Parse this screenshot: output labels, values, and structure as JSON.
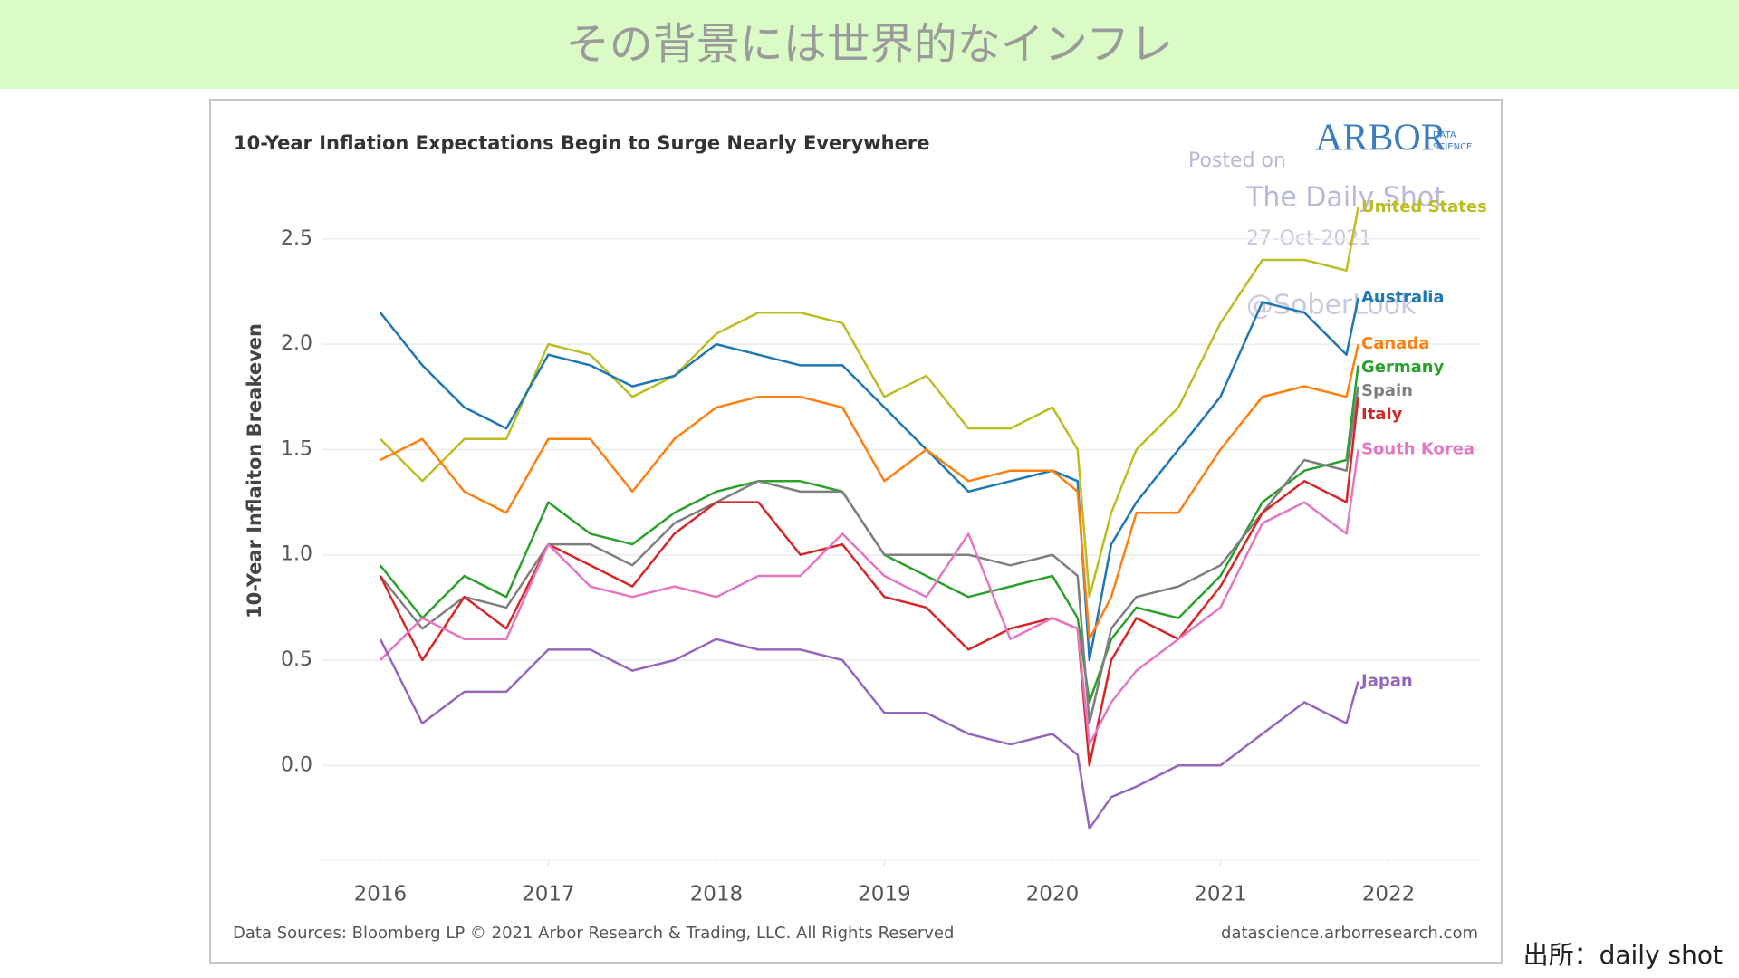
{
  "header": {
    "title": "その背景には世界的なインフレ"
  },
  "chart_data": {
    "type": "line",
    "title": "10-Year Inflation Expectations Begin to Surge Nearly Everywhere",
    "y_label": "10-Year Inflaiton Breakeven",
    "x": [
      2016,
      2016.25,
      2016.5,
      2016.75,
      2017,
      2017.25,
      2017.5,
      2017.75,
      2018,
      2018.25,
      2018.5,
      2018.75,
      2019,
      2019.25,
      2019.5,
      2019.75,
      2020,
      2020.15,
      2020.22,
      2020.35,
      2020.5,
      2020.75,
      2021,
      2021.25,
      2021.5,
      2021.75,
      2021.82
    ],
    "xlim": [
      2015.65,
      2022.55
    ],
    "xticks": [
      2016,
      2017,
      2018,
      2019,
      2020,
      2021,
      2022
    ],
    "ylim": [
      -0.45,
      2.8
    ],
    "yticks": [
      {
        "value": 0,
        "label": "0.0"
      },
      {
        "value": 0.5,
        "label": "0.5"
      },
      {
        "value": 1,
        "label": "1.0"
      },
      {
        "value": 1.5,
        "label": "1.5"
      },
      {
        "value": 2,
        "label": "2.0"
      },
      {
        "value": 2.5,
        "label": "2.5"
      }
    ],
    "grid": true,
    "series": [
      {
        "name": "United States",
        "color": "#bcbd22",
        "values": [
          1.55,
          1.35,
          1.55,
          1.55,
          2.0,
          1.95,
          1.75,
          1.85,
          2.05,
          2.15,
          2.15,
          2.1,
          1.75,
          1.85,
          1.6,
          1.6,
          1.7,
          1.5,
          0.8,
          1.2,
          1.5,
          1.7,
          2.1,
          2.4,
          2.4,
          2.35,
          2.65
        ]
      },
      {
        "name": "Australia",
        "color": "#1f77b4",
        "values": [
          2.15,
          1.9,
          1.7,
          1.6,
          1.95,
          1.9,
          1.8,
          1.85,
          2.0,
          1.95,
          1.9,
          1.9,
          1.7,
          1.5,
          1.3,
          1.35,
          1.4,
          1.35,
          0.5,
          1.05,
          1.25,
          1.5,
          1.75,
          2.2,
          2.15,
          1.95,
          2.22
        ]
      },
      {
        "name": "Canada",
        "color": "#ff7f0e",
        "values": [
          1.45,
          1.55,
          1.3,
          1.2,
          1.55,
          1.55,
          1.3,
          1.55,
          1.7,
          1.75,
          1.75,
          1.7,
          1.35,
          1.5,
          1.35,
          1.4,
          1.4,
          1.3,
          0.6,
          0.8,
          1.2,
          1.2,
          1.5,
          1.75,
          1.8,
          1.75,
          2.0
        ]
      },
      {
        "name": "Germany",
        "color": "#2ca02c",
        "values": [
          0.95,
          0.7,
          0.9,
          0.8,
          1.25,
          1.1,
          1.05,
          1.2,
          1.3,
          1.35,
          1.35,
          1.3,
          1.0,
          0.9,
          0.8,
          0.85,
          0.9,
          0.7,
          0.3,
          0.6,
          0.75,
          0.7,
          0.9,
          1.25,
          1.4,
          1.45,
          1.9
        ]
      },
      {
        "name": "Spain",
        "color": "#7f7f7f",
        "values": [
          0.9,
          0.65,
          0.8,
          0.75,
          1.05,
          1.05,
          0.95,
          1.15,
          1.25,
          1.35,
          1.3,
          1.3,
          1.0,
          1.0,
          1.0,
          0.95,
          1.0,
          0.9,
          0.2,
          0.65,
          0.8,
          0.85,
          0.95,
          1.2,
          1.45,
          1.4,
          1.8
        ]
      },
      {
        "name": "Italy",
        "color": "#d62728",
        "values": [
          0.9,
          0.5,
          0.8,
          0.65,
          1.05,
          0.95,
          0.85,
          1.1,
          1.25,
          1.25,
          1.0,
          1.05,
          0.8,
          0.75,
          0.55,
          0.65,
          0.7,
          0.65,
          0.0,
          0.5,
          0.7,
          0.6,
          0.85,
          1.2,
          1.35,
          1.25,
          1.75
        ]
      },
      {
        "name": "South Korea",
        "color": "#e377c2",
        "values": [
          0.5,
          0.7,
          0.6,
          0.6,
          1.05,
          0.85,
          0.8,
          0.85,
          0.8,
          0.9,
          0.9,
          1.1,
          0.9,
          0.8,
          1.1,
          0.6,
          0.7,
          0.65,
          0.1,
          0.3,
          0.45,
          0.6,
          0.75,
          1.15,
          1.25,
          1.1,
          1.5
        ]
      },
      {
        "name": "Japan",
        "color": "#9467bd",
        "values": [
          0.6,
          0.2,
          0.35,
          0.35,
          0.55,
          0.55,
          0.45,
          0.5,
          0.6,
          0.55,
          0.55,
          0.5,
          0.25,
          0.25,
          0.15,
          0.1,
          0.15,
          0.05,
          -0.3,
          -0.15,
          -0.1,
          0.0,
          0.0,
          0.15,
          0.3,
          0.2,
          0.4
        ]
      }
    ],
    "watermark": [
      "Posted on",
      "The Daily Shot",
      "27-Oct-2021",
      "@SoberLook"
    ],
    "logo": {
      "name": "ARBOR",
      "sub1": "DATA",
      "sub2": "SCIENCE"
    },
    "footer_left": "Data Sources: Bloomberg LP © 2021 Arbor Research & Trading, LLC. All Rights Reserved",
    "footer_right": "datascience.arborresearch.com"
  },
  "source": "出所：daily shot"
}
